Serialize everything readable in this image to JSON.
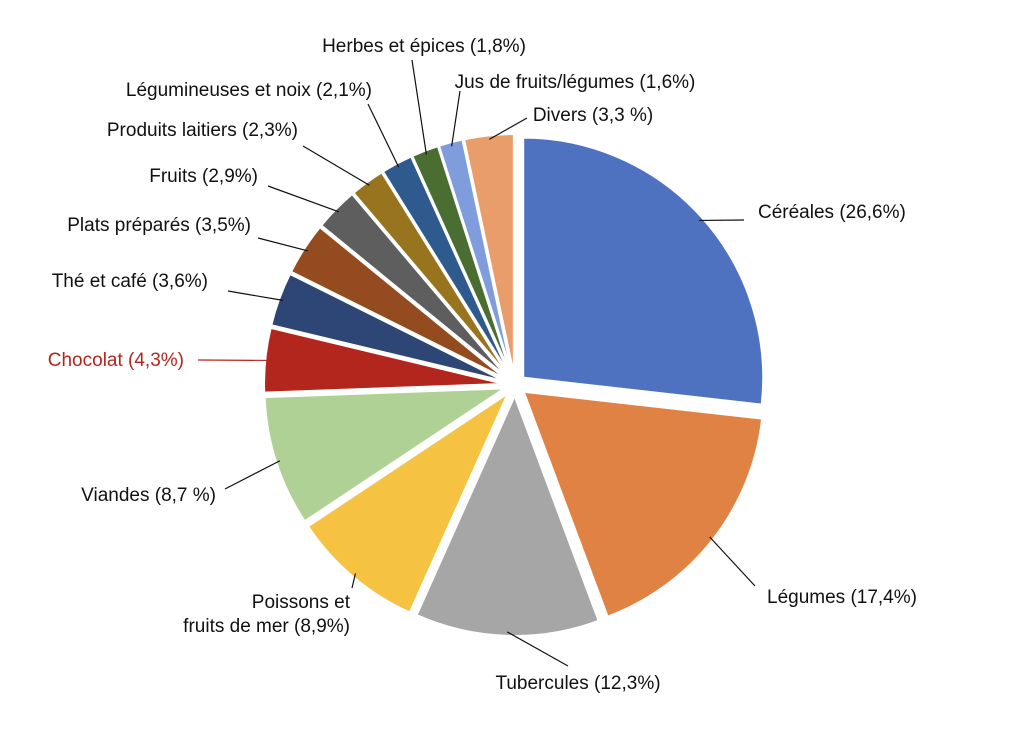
{
  "chart_data": {
    "type": "pie",
    "title": "",
    "legend": "none",
    "highlight_color": "#B3261E",
    "slices": [
      {
        "label": "Céréales (26,6%)",
        "value": 26.6,
        "color": "#4F72C0"
      },
      {
        "label": "Légumes (17,4%)",
        "value": 17.4,
        "color": "#E08244"
      },
      {
        "label": "Tubercules (12,3%)",
        "value": 12.3,
        "color": "#A6A6A6"
      },
      {
        "label": "Poissons et fruits de mer (8,9%)",
        "lines": [
          "Poissons et",
          "fruits de mer (8,9%)"
        ],
        "value": 8.9,
        "color": "#F5C242"
      },
      {
        "label": "Viandes (8,7 %)",
        "value": 8.7,
        "color": "#B0D196"
      },
      {
        "label": "Chocolat (4,3%)",
        "value": 4.3,
        "color": "#B3261E",
        "highlight": true
      },
      {
        "label": "Thé et café (3,6%)",
        "value": 3.6,
        "color": "#2E4676"
      },
      {
        "label": "Plats préparés (3,5%)",
        "value": 3.5,
        "color": "#944B20"
      },
      {
        "label": "Fruits (2,9%)",
        "value": 2.9,
        "color": "#5E5E5E"
      },
      {
        "label": "Produits laitiers (2,3%)",
        "value": 2.3,
        "color": "#98741F"
      },
      {
        "label": "Légumineuses et noix (2,1%)",
        "value": 2.1,
        "color": "#2F5A8E"
      },
      {
        "label": "Herbes et épices (1,8%)",
        "value": 1.8,
        "color": "#4A6D31"
      },
      {
        "label": "Jus de fruits/légumes (1,6%)",
        "value": 1.6,
        "color": "#7F9DDC"
      },
      {
        "label": "Divers (3,3 %)",
        "value": 3.3,
        "color": "#E89D6A"
      }
    ]
  }
}
